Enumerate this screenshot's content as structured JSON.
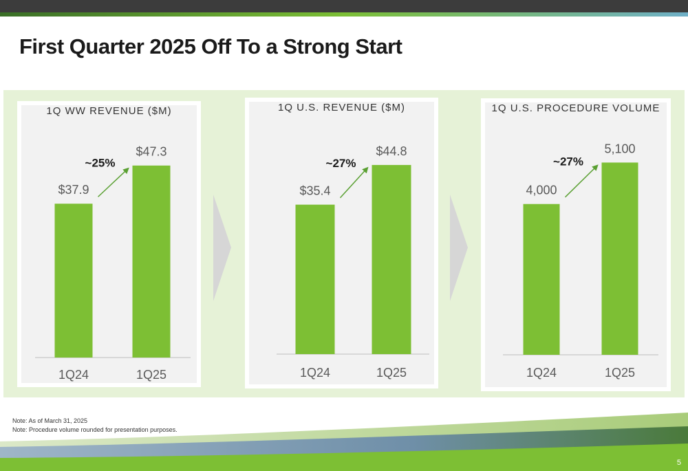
{
  "slide": {
    "title": "First Quarter 2025 Off To a Strong Start",
    "notes": [
      "Note: As of March 31, 2025",
      "Note: Procedure volume rounded for presentation purposes."
    ],
    "page_number": "5"
  },
  "colors": {
    "bar": "#7dbf34",
    "arrow": "#5aa032",
    "axis": "#bfbfbf",
    "label": "#595959",
    "panel_bg": "#f2f2f2",
    "band": "#e6f2d7"
  },
  "chart_data": [
    {
      "type": "bar",
      "title": "1Q WW REVENUE ($M)",
      "categories": [
        "1Q24",
        "1Q25"
      ],
      "values": [
        37.9,
        47.3
      ],
      "data_labels": [
        "$37.9",
        "$47.3"
      ],
      "growth_label": "~25%",
      "ylim": [
        0,
        52
      ]
    },
    {
      "type": "bar",
      "title": "1Q U.S. REVENUE ($M)",
      "categories": [
        "1Q24",
        "1Q25"
      ],
      "values": [
        35.4,
        44.8
      ],
      "data_labels": [
        "$35.4",
        "$44.8"
      ],
      "growth_label": "~27%",
      "ylim": [
        0,
        50
      ]
    },
    {
      "type": "bar",
      "title": "1Q U.S. PROCEDURE VOLUME",
      "categories": [
        "1Q24",
        "1Q25"
      ],
      "values": [
        4000,
        5100
      ],
      "data_labels": [
        "4,000",
        "5,100"
      ],
      "growth_label": "~27%",
      "ylim": [
        0,
        5600
      ]
    }
  ]
}
